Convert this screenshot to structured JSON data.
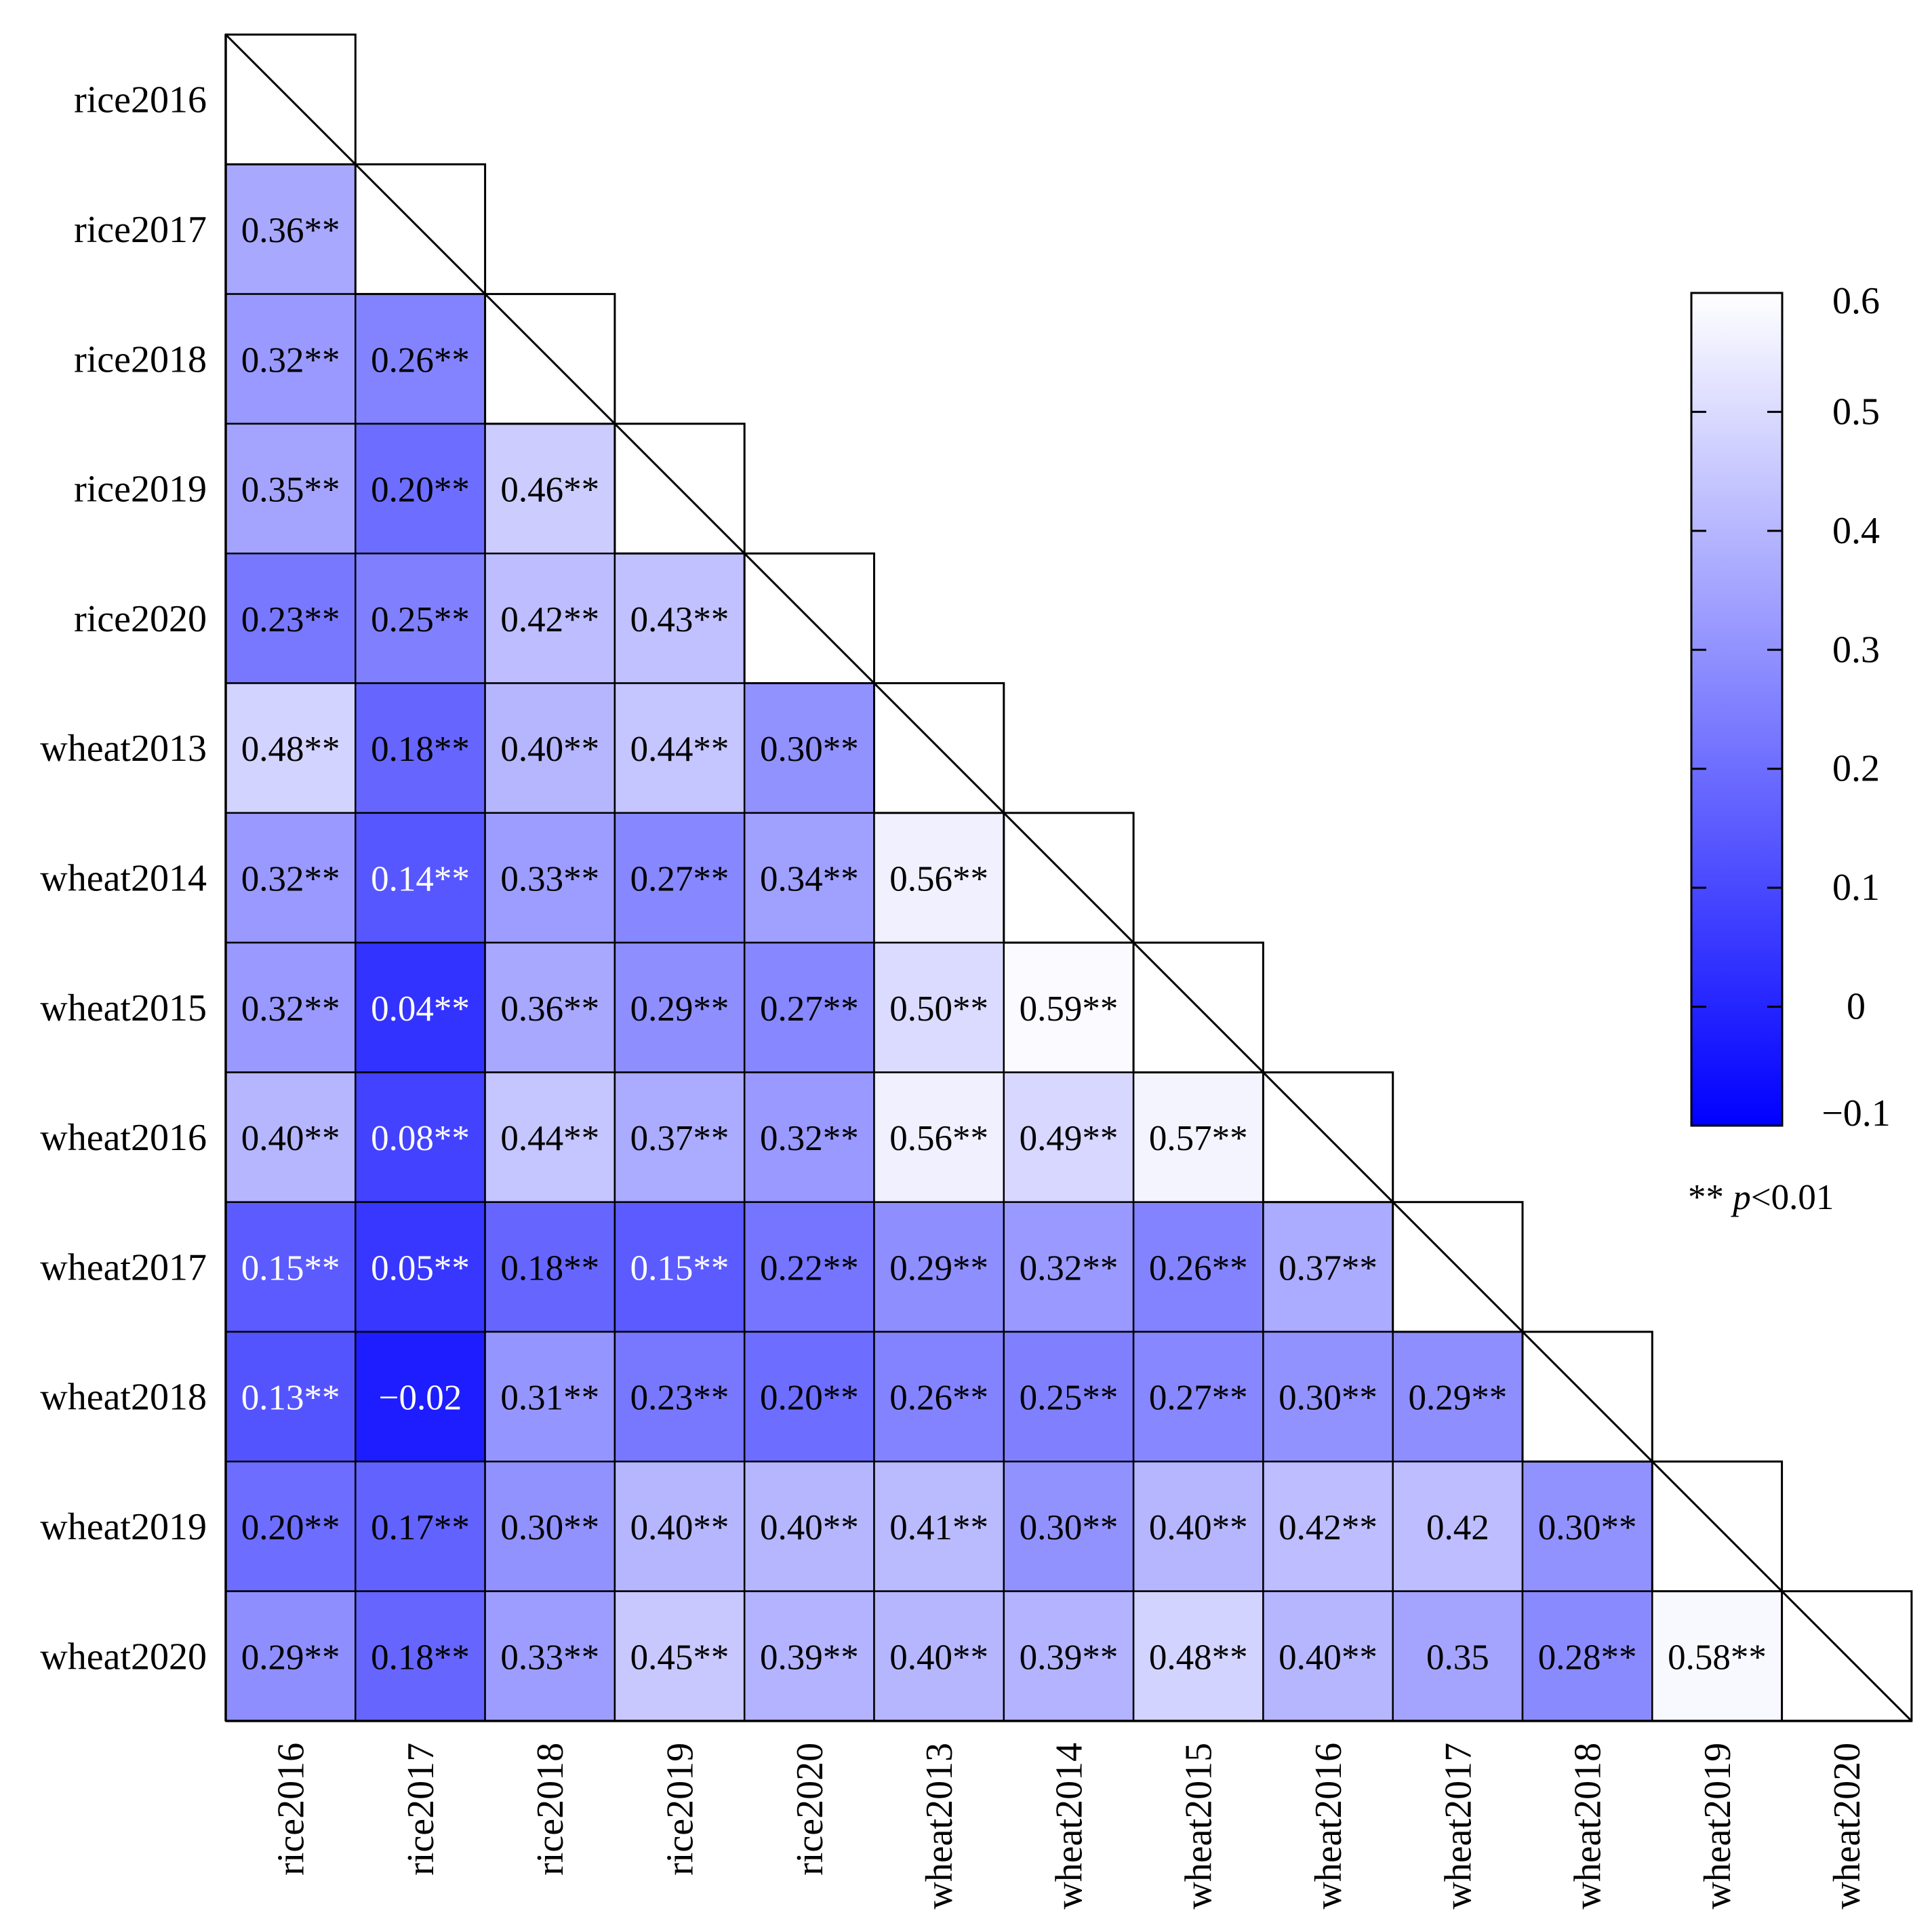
{
  "chart_data": {
    "type": "heatmap",
    "subtype": "lower-triangle correlation matrix",
    "labels": [
      "rice2016",
      "rice2017",
      "rice2018",
      "rice2019",
      "rice2020",
      "wheat2013",
      "wheat2014",
      "wheat2015",
      "wheat2016",
      "wheat2017",
      "wheat2018",
      "wheat2019",
      "wheat2020"
    ],
    "cells": [
      {
        "row": 1,
        "col": 0,
        "value": 0.36,
        "text": "0.36**"
      },
      {
        "row": 2,
        "col": 0,
        "value": 0.32,
        "text": "0.32**"
      },
      {
        "row": 2,
        "col": 1,
        "value": 0.26,
        "text": "0.26**"
      },
      {
        "row": 3,
        "col": 0,
        "value": 0.35,
        "text": "0.35**"
      },
      {
        "row": 3,
        "col": 1,
        "value": 0.2,
        "text": "0.20**"
      },
      {
        "row": 3,
        "col": 2,
        "value": 0.46,
        "text": "0.46**"
      },
      {
        "row": 4,
        "col": 0,
        "value": 0.23,
        "text": "0.23**"
      },
      {
        "row": 4,
        "col": 1,
        "value": 0.25,
        "text": "0.25**"
      },
      {
        "row": 4,
        "col": 2,
        "value": 0.42,
        "text": "0.42**"
      },
      {
        "row": 4,
        "col": 3,
        "value": 0.43,
        "text": "0.43**"
      },
      {
        "row": 5,
        "col": 0,
        "value": 0.48,
        "text": "0.48**"
      },
      {
        "row": 5,
        "col": 1,
        "value": 0.18,
        "text": "0.18**"
      },
      {
        "row": 5,
        "col": 2,
        "value": 0.4,
        "text": "0.40**"
      },
      {
        "row": 5,
        "col": 3,
        "value": 0.44,
        "text": "0.44**"
      },
      {
        "row": 5,
        "col": 4,
        "value": 0.3,
        "text": "0.30**"
      },
      {
        "row": 6,
        "col": 0,
        "value": 0.32,
        "text": "0.32**"
      },
      {
        "row": 6,
        "col": 1,
        "value": 0.14,
        "text": "0.14**"
      },
      {
        "row": 6,
        "col": 2,
        "value": 0.33,
        "text": "0.33**"
      },
      {
        "row": 6,
        "col": 3,
        "value": 0.27,
        "text": "0.27**"
      },
      {
        "row": 6,
        "col": 4,
        "value": 0.34,
        "text": "0.34**"
      },
      {
        "row": 6,
        "col": 5,
        "value": 0.56,
        "text": "0.56**"
      },
      {
        "row": 7,
        "col": 0,
        "value": 0.32,
        "text": "0.32**"
      },
      {
        "row": 7,
        "col": 1,
        "value": 0.04,
        "text": "0.04**"
      },
      {
        "row": 7,
        "col": 2,
        "value": 0.36,
        "text": "0.36**"
      },
      {
        "row": 7,
        "col": 3,
        "value": 0.29,
        "text": "0.29**"
      },
      {
        "row": 7,
        "col": 4,
        "value": 0.27,
        "text": "0.27**"
      },
      {
        "row": 7,
        "col": 5,
        "value": 0.5,
        "text": "0.50**"
      },
      {
        "row": 7,
        "col": 6,
        "value": 0.59,
        "text": "0.59**"
      },
      {
        "row": 8,
        "col": 0,
        "value": 0.4,
        "text": "0.40**"
      },
      {
        "row": 8,
        "col": 1,
        "value": 0.08,
        "text": "0.08**"
      },
      {
        "row": 8,
        "col": 2,
        "value": 0.44,
        "text": "0.44**"
      },
      {
        "row": 8,
        "col": 3,
        "value": 0.37,
        "text": "0.37**"
      },
      {
        "row": 8,
        "col": 4,
        "value": 0.32,
        "text": "0.32**"
      },
      {
        "row": 8,
        "col": 5,
        "value": 0.56,
        "text": "0.56**"
      },
      {
        "row": 8,
        "col": 6,
        "value": 0.49,
        "text": "0.49**"
      },
      {
        "row": 8,
        "col": 7,
        "value": 0.57,
        "text": "0.57**"
      },
      {
        "row": 9,
        "col": 0,
        "value": 0.15,
        "text": "0.15**"
      },
      {
        "row": 9,
        "col": 1,
        "value": 0.05,
        "text": "0.05**"
      },
      {
        "row": 9,
        "col": 2,
        "value": 0.18,
        "text": "0.18**"
      },
      {
        "row": 9,
        "col": 3,
        "value": 0.15,
        "text": "0.15**"
      },
      {
        "row": 9,
        "col": 4,
        "value": 0.22,
        "text": "0.22**"
      },
      {
        "row": 9,
        "col": 5,
        "value": 0.29,
        "text": "0.29**"
      },
      {
        "row": 9,
        "col": 6,
        "value": 0.32,
        "text": "0.32**"
      },
      {
        "row": 9,
        "col": 7,
        "value": 0.26,
        "text": "0.26**"
      },
      {
        "row": 9,
        "col": 8,
        "value": 0.37,
        "text": "0.37**"
      },
      {
        "row": 10,
        "col": 0,
        "value": 0.13,
        "text": "0.13**"
      },
      {
        "row": 10,
        "col": 1,
        "value": -0.02,
        "text": "−0.02"
      },
      {
        "row": 10,
        "col": 2,
        "value": 0.31,
        "text": "0.31**"
      },
      {
        "row": 10,
        "col": 3,
        "value": 0.23,
        "text": "0.23**"
      },
      {
        "row": 10,
        "col": 4,
        "value": 0.2,
        "text": "0.20**"
      },
      {
        "row": 10,
        "col": 5,
        "value": 0.26,
        "text": "0.26**"
      },
      {
        "row": 10,
        "col": 6,
        "value": 0.25,
        "text": "0.25**"
      },
      {
        "row": 10,
        "col": 7,
        "value": 0.27,
        "text": "0.27**"
      },
      {
        "row": 10,
        "col": 8,
        "value": 0.3,
        "text": "0.30**"
      },
      {
        "row": 10,
        "col": 9,
        "value": 0.29,
        "text": "0.29**"
      },
      {
        "row": 11,
        "col": 0,
        "value": 0.2,
        "text": "0.20**"
      },
      {
        "row": 11,
        "col": 1,
        "value": 0.17,
        "text": "0.17**"
      },
      {
        "row": 11,
        "col": 2,
        "value": 0.3,
        "text": "0.30**"
      },
      {
        "row": 11,
        "col": 3,
        "value": 0.4,
        "text": "0.40**"
      },
      {
        "row": 11,
        "col": 4,
        "value": 0.4,
        "text": "0.40**"
      },
      {
        "row": 11,
        "col": 5,
        "value": 0.41,
        "text": "0.41**"
      },
      {
        "row": 11,
        "col": 6,
        "value": 0.3,
        "text": "0.30**"
      },
      {
        "row": 11,
        "col": 7,
        "value": 0.4,
        "text": "0.40**"
      },
      {
        "row": 11,
        "col": 8,
        "value": 0.42,
        "text": "0.42**"
      },
      {
        "row": 11,
        "col": 9,
        "value": 0.42,
        "text": "0.42"
      },
      {
        "row": 11,
        "col": 10,
        "value": 0.3,
        "text": "0.30**"
      },
      {
        "row": 12,
        "col": 0,
        "value": 0.29,
        "text": "0.29**"
      },
      {
        "row": 12,
        "col": 1,
        "value": 0.18,
        "text": "0.18**"
      },
      {
        "row": 12,
        "col": 2,
        "value": 0.33,
        "text": "0.33**"
      },
      {
        "row": 12,
        "col": 3,
        "value": 0.45,
        "text": "0.45**"
      },
      {
        "row": 12,
        "col": 4,
        "value": 0.39,
        "text": "0.39**"
      },
      {
        "row": 12,
        "col": 5,
        "value": 0.4,
        "text": "0.40**"
      },
      {
        "row": 12,
        "col": 6,
        "value": 0.39,
        "text": "0.39**"
      },
      {
        "row": 12,
        "col": 7,
        "value": 0.48,
        "text": "0.48**"
      },
      {
        "row": 12,
        "col": 8,
        "value": 0.4,
        "text": "0.40**"
      },
      {
        "row": 12,
        "col": 9,
        "value": 0.35,
        "text": "0.35"
      },
      {
        "row": 12,
        "col": 10,
        "value": 0.28,
        "text": "0.28**"
      },
      {
        "row": 12,
        "col": 11,
        "value": 0.58,
        "text": "0.58**"
      }
    ],
    "colorbar": {
      "range": [
        -0.1,
        0.6
      ],
      "ticks": [
        0.6,
        0.5,
        0.4,
        0.3,
        0.2,
        0.1,
        0,
        -0.1
      ],
      "tick_labels": [
        "0.6",
        "0.5",
        "0.4",
        "0.3",
        "0.2",
        "0.1",
        "0",
        "−0.1"
      ],
      "color_low": "#0000ff",
      "color_high": "#ffffff"
    },
    "significance_note": {
      "stars": "**",
      "p": "p",
      "rest": "<0.01"
    },
    "label_color_threshold": 0.16,
    "colors": {
      "text_dark": "#000000",
      "text_light": "#ffffff",
      "border": "#000000"
    }
  }
}
